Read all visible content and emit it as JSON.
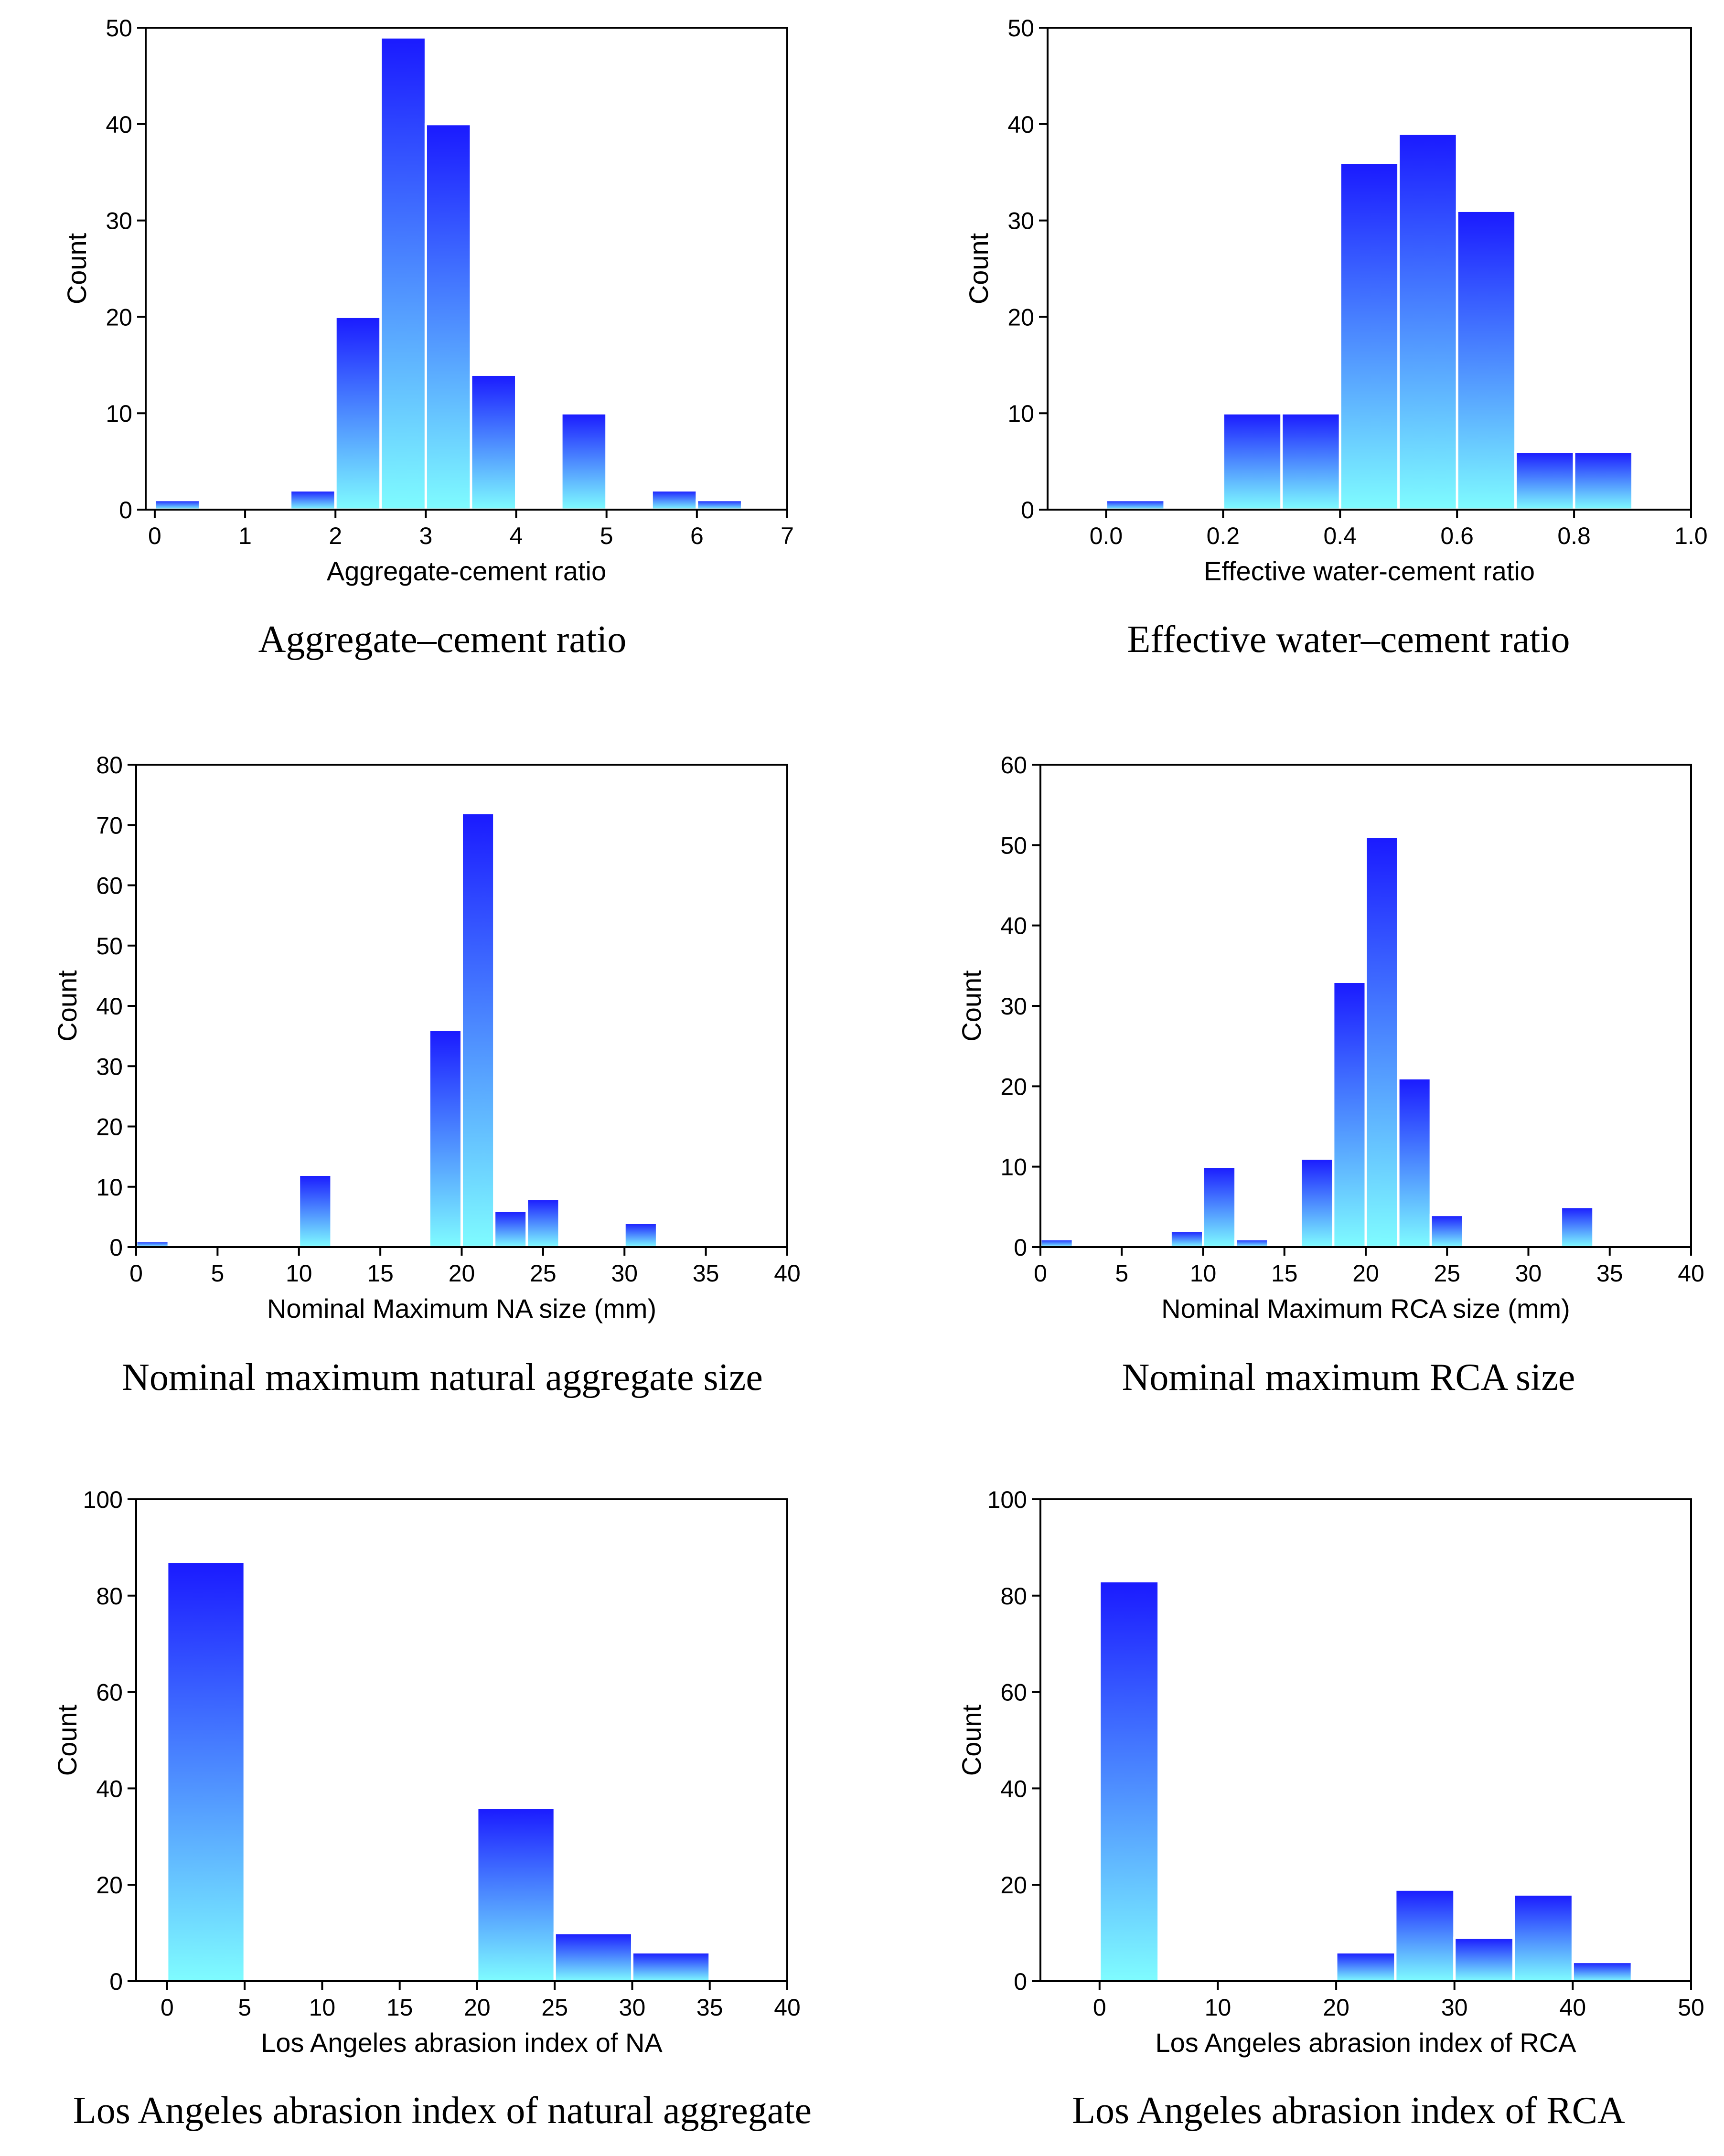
{
  "figure": {
    "colors": {
      "bar_top": "#1a1aff",
      "bar_bottom": "#7ffcff",
      "bar_edge": "#ffffff",
      "axis": "#000000",
      "background": "#ffffff"
    }
  },
  "chart_data": [
    {
      "type": "bar",
      "histogram": true,
      "caption": "Aggregate–cement ratio",
      "xlabel": "Aggregate-cement ratio",
      "ylabel": "Count",
      "xlim": [
        -0.1,
        7
      ],
      "ylim": [
        0,
        50
      ],
      "xticks": [
        0,
        1,
        2,
        3,
        4,
        5,
        6,
        7
      ],
      "xtick_labels": [
        "0",
        "1",
        "2",
        "3",
        "4",
        "5",
        "6",
        "7"
      ],
      "yticks": [
        0,
        10,
        20,
        30,
        40,
        50
      ],
      "ytick_labels": [
        "0",
        "10",
        "20",
        "30",
        "40",
        "50"
      ],
      "bins": [
        {
          "start": 0,
          "end": 0.5,
          "value": 1
        },
        {
          "start": 0.5,
          "end": 1,
          "value": 0
        },
        {
          "start": 1,
          "end": 1.5,
          "value": 0
        },
        {
          "start": 1.5,
          "end": 2,
          "value": 2
        },
        {
          "start": 2,
          "end": 2.5,
          "value": 20
        },
        {
          "start": 2.5,
          "end": 3,
          "value": 49
        },
        {
          "start": 3,
          "end": 3.5,
          "value": 40
        },
        {
          "start": 3.5,
          "end": 4,
          "value": 14
        },
        {
          "start": 4,
          "end": 4.5,
          "value": 0
        },
        {
          "start": 4.5,
          "end": 5,
          "value": 10
        },
        {
          "start": 5,
          "end": 5.5,
          "value": 0
        },
        {
          "start": 5.5,
          "end": 6,
          "value": 2
        },
        {
          "start": 6,
          "end": 6.5,
          "value": 1
        }
      ]
    },
    {
      "type": "bar",
      "histogram": true,
      "caption": "Effective water–cement ratio",
      "xlabel": "Effective water-cement ratio",
      "ylabel": "Count",
      "xlim": [
        -0.1,
        1.0
      ],
      "ylim": [
        0,
        50
      ],
      "xticks": [
        0,
        0.2,
        0.4,
        0.6,
        0.8,
        1.0
      ],
      "xtick_labels": [
        "0.0",
        "0.2",
        "0.4",
        "0.6",
        "0.8",
        "1.0"
      ],
      "yticks": [
        0,
        10,
        20,
        30,
        40,
        50
      ],
      "ytick_labels": [
        "0",
        "10",
        "20",
        "30",
        "40",
        "50"
      ],
      "bins": [
        {
          "start": 0,
          "end": 0.1,
          "value": 1
        },
        {
          "start": 0.1,
          "end": 0.2,
          "value": 0
        },
        {
          "start": 0.2,
          "end": 0.3,
          "value": 10
        },
        {
          "start": 0.3,
          "end": 0.4,
          "value": 10
        },
        {
          "start": 0.4,
          "end": 0.5,
          "value": 36
        },
        {
          "start": 0.5,
          "end": 0.6,
          "value": 39
        },
        {
          "start": 0.6,
          "end": 0.7,
          "value": 31
        },
        {
          "start": 0.7,
          "end": 0.8,
          "value": 6
        },
        {
          "start": 0.8,
          "end": 0.9,
          "value": 6
        }
      ]
    },
    {
      "type": "bar",
      "histogram": true,
      "caption": "Nominal maximum natural aggregate size",
      "xlabel": "Nominal Maximum NA size (mm)",
      "ylabel": "Count",
      "xlim": [
        0,
        40
      ],
      "ylim": [
        0,
        80
      ],
      "xticks": [
        0,
        5,
        10,
        15,
        20,
        25,
        30,
        35,
        40
      ],
      "xtick_labels": [
        "0",
        "5",
        "10",
        "15",
        "20",
        "25",
        "30",
        "35",
        "40"
      ],
      "yticks": [
        0,
        10,
        20,
        30,
        40,
        50,
        60,
        70,
        80
      ],
      "ytick_labels": [
        "0",
        "10",
        "20",
        "30",
        "40",
        "50",
        "60",
        "70",
        "80"
      ],
      "bins": [
        {
          "start": 0,
          "end": 2,
          "value": 1
        },
        {
          "start": 10,
          "end": 12,
          "value": 12
        },
        {
          "start": 18,
          "end": 20,
          "value": 36
        },
        {
          "start": 20,
          "end": 22,
          "value": 72
        },
        {
          "start": 22,
          "end": 24,
          "value": 6
        },
        {
          "start": 24,
          "end": 26,
          "value": 8
        },
        {
          "start": 30,
          "end": 32,
          "value": 4
        }
      ]
    },
    {
      "type": "bar",
      "histogram": true,
      "caption": "Nominal maximum RCA size",
      "xlabel": "Nominal Maximum RCA size (mm)",
      "ylabel": "Count",
      "xlim": [
        0,
        40
      ],
      "ylim": [
        0,
        60
      ],
      "xticks": [
        0,
        5,
        10,
        15,
        20,
        25,
        30,
        35,
        40
      ],
      "xtick_labels": [
        "0",
        "5",
        "10",
        "15",
        "20",
        "25",
        "30",
        "35",
        "40"
      ],
      "yticks": [
        0,
        10,
        20,
        30,
        40,
        50,
        60
      ],
      "ytick_labels": [
        "0",
        "10",
        "20",
        "30",
        "40",
        "50",
        "60"
      ],
      "bins": [
        {
          "start": 0,
          "end": 2,
          "value": 1
        },
        {
          "start": 8,
          "end": 10,
          "value": 2
        },
        {
          "start": 10,
          "end": 12,
          "value": 10
        },
        {
          "start": 12,
          "end": 14,
          "value": 1
        },
        {
          "start": 16,
          "end": 18,
          "value": 11
        },
        {
          "start": 18,
          "end": 20,
          "value": 33
        },
        {
          "start": 20,
          "end": 22,
          "value": 51
        },
        {
          "start": 22,
          "end": 24,
          "value": 21
        },
        {
          "start": 24,
          "end": 26,
          "value": 4
        },
        {
          "start": 32,
          "end": 34,
          "value": 5
        }
      ]
    },
    {
      "type": "bar",
      "histogram": true,
      "caption": "Los Angeles abrasion index of natural aggregate",
      "xlabel": "Los Angeles abrasion index of NA",
      "ylabel": "Count",
      "xlim": [
        -2,
        40
      ],
      "ylim": [
        0,
        100
      ],
      "xticks": [
        0,
        5,
        10,
        15,
        20,
        25,
        30,
        35,
        40
      ],
      "xtick_labels": [
        "0",
        "5",
        "10",
        "15",
        "20",
        "25",
        "30",
        "35",
        "40"
      ],
      "yticks": [
        0,
        20,
        40,
        60,
        80,
        100
      ],
      "ytick_labels": [
        "0",
        "20",
        "40",
        "60",
        "80",
        "100"
      ],
      "bins": [
        {
          "start": 0,
          "end": 5,
          "value": 87
        },
        {
          "start": 20,
          "end": 25,
          "value": 36
        },
        {
          "start": 25,
          "end": 30,
          "value": 10
        },
        {
          "start": 30,
          "end": 35,
          "value": 6
        }
      ]
    },
    {
      "type": "bar",
      "histogram": true,
      "caption": "Los Angeles abrasion index of RCA",
      "xlabel": "Los Angeles abrasion index of RCA",
      "ylabel": "Count",
      "xlim": [
        -5,
        50
      ],
      "ylim": [
        0,
        100
      ],
      "xticks": [
        0,
        10,
        20,
        30,
        40,
        50
      ],
      "xtick_labels": [
        "0",
        "10",
        "20",
        "30",
        "40",
        "50"
      ],
      "yticks": [
        0,
        20,
        40,
        60,
        80,
        100
      ],
      "ytick_labels": [
        "0",
        "20",
        "40",
        "60",
        "80",
        "100"
      ],
      "bins": [
        {
          "start": 0,
          "end": 5,
          "value": 83
        },
        {
          "start": 20,
          "end": 25,
          "value": 6
        },
        {
          "start": 25,
          "end": 30,
          "value": 19
        },
        {
          "start": 30,
          "end": 35,
          "value": 9
        },
        {
          "start": 35,
          "end": 40,
          "value": 18
        },
        {
          "start": 40,
          "end": 45,
          "value": 4
        }
      ]
    }
  ]
}
